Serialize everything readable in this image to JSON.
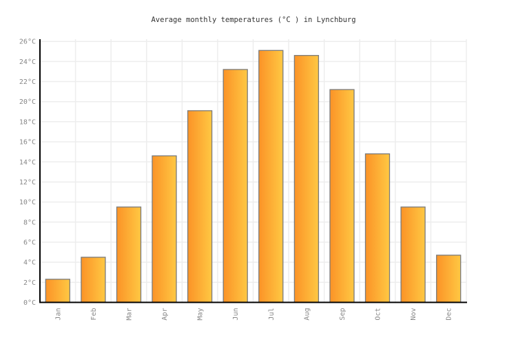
{
  "chart_data": {
    "type": "bar",
    "title": "Average monthly temperatures (°C ) in Lynchburg",
    "categories": [
      "Jan",
      "Feb",
      "Mar",
      "Apr",
      "May",
      "Jun",
      "Jul",
      "Aug",
      "Sep",
      "Oct",
      "Nov",
      "Dec"
    ],
    "values": [
      2.3,
      4.5,
      9.5,
      14.6,
      19.1,
      23.2,
      25.1,
      24.6,
      21.2,
      14.8,
      9.5,
      4.7
    ],
    "unit": "°C",
    "xlabel": "",
    "ylabel": "",
    "ylim": [
      0,
      26
    ],
    "ytick_step": 2,
    "grid": "on",
    "legend": "none",
    "colors": {
      "bar_gradient_left": "#FB9327",
      "bar_gradient_right": "#FFC843",
      "bar_border": "#7a7a7a",
      "gridline": "#ededed",
      "axis": "#000000",
      "tick_label": "#878787",
      "title": "#333333",
      "background": "#ffffff"
    }
  }
}
